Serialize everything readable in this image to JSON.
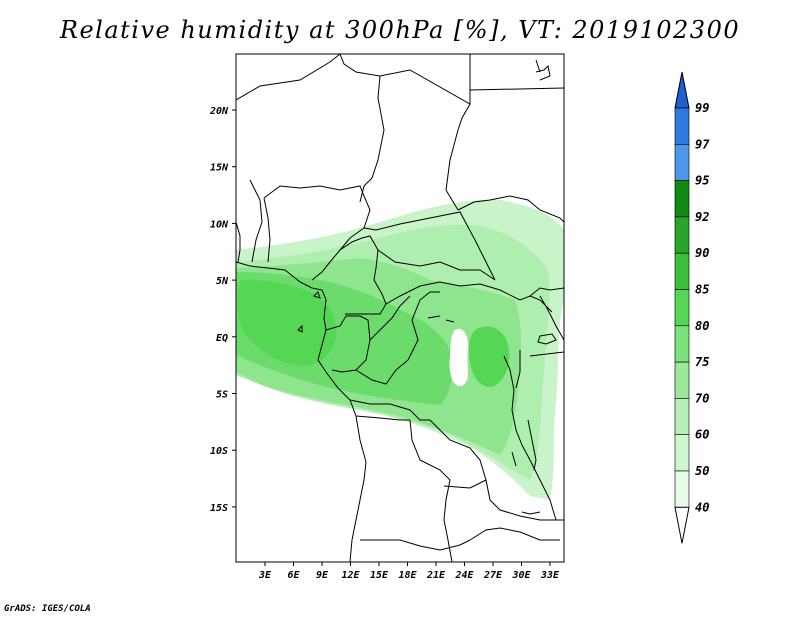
{
  "title": "Relative humidity at 300hPa [%], VT: 2019102300",
  "credit": "GrADS: IGES/COLA",
  "map": {
    "lon_ticks": [
      "3E",
      "6E",
      "9E",
      "12E",
      "15E",
      "18E",
      "21E",
      "24E",
      "27E",
      "30E",
      "33E"
    ],
    "lat_ticks": [
      "20N",
      "15N",
      "10N",
      "5N",
      "EQ",
      "5S",
      "10S",
      "15S"
    ]
  },
  "colorbar": {
    "levels": [
      "99",
      "97",
      "95",
      "92",
      "90",
      "85",
      "80",
      "75",
      "70",
      "60",
      "50",
      "40"
    ],
    "colors": [
      "#1f5fd0",
      "#2f78e0",
      "#4c97ea",
      "#0f8a12",
      "#27a62a",
      "#3cc03c",
      "#55d655",
      "#7ae27a",
      "#9ae99a",
      "#b6f0b6",
      "#cff5cf",
      "#e8fbe8",
      "#ffffff"
    ]
  }
}
